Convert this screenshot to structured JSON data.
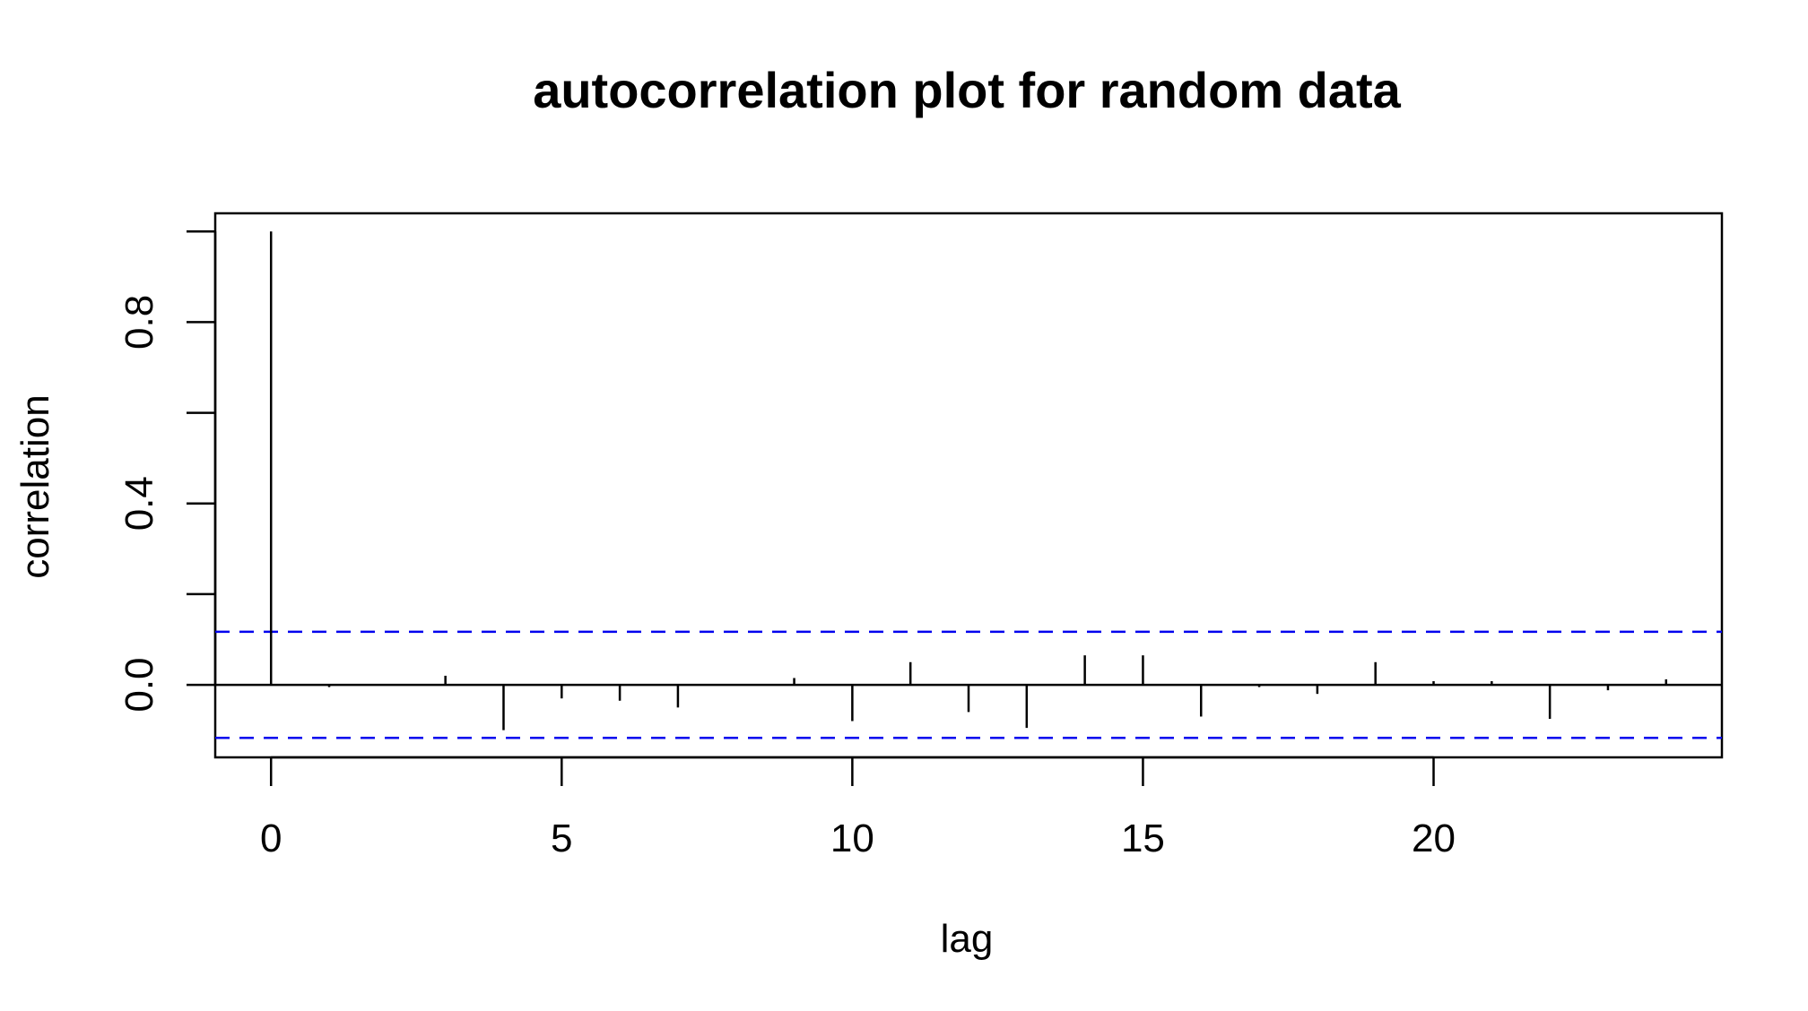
{
  "chart_data": {
    "type": "bar",
    "title": "autocorrelation plot for random data",
    "xlabel": "lag",
    "ylabel": "correlation",
    "xlim": [
      -0.96,
      24.96
    ],
    "ylim": [
      -0.16,
      1.04
    ],
    "x_ticks": [
      0,
      5,
      10,
      15,
      20
    ],
    "x_tick_labels": [
      "0",
      "5",
      "10",
      "15",
      "20"
    ],
    "y_ticks": [
      0.0,
      0.2,
      0.4,
      0.6,
      0.8,
      1.0
    ],
    "y_tick_labels": [
      "0.0",
      "",
      "0.4",
      "",
      "0.8",
      ""
    ],
    "lags": [
      0,
      1,
      2,
      3,
      4,
      5,
      6,
      7,
      8,
      9,
      10,
      11,
      12,
      13,
      14,
      15,
      16,
      17,
      18,
      19,
      20,
      21,
      22,
      23,
      24
    ],
    "values": [
      1.0,
      -0.005,
      0.0,
      0.02,
      -0.1,
      -0.03,
      -0.035,
      -0.05,
      0.0,
      0.015,
      -0.08,
      0.05,
      -0.06,
      -0.095,
      0.065,
      0.065,
      -0.07,
      -0.005,
      -0.02,
      0.05,
      0.008,
      0.008,
      -0.075,
      -0.012,
      0.012
    ],
    "confidence_bounds": [
      0.117,
      -0.117
    ],
    "zero_line": true,
    "grid": false,
    "colors": {
      "bars": "#000000",
      "confidence": "#0000ee",
      "frame": "#000000"
    }
  }
}
